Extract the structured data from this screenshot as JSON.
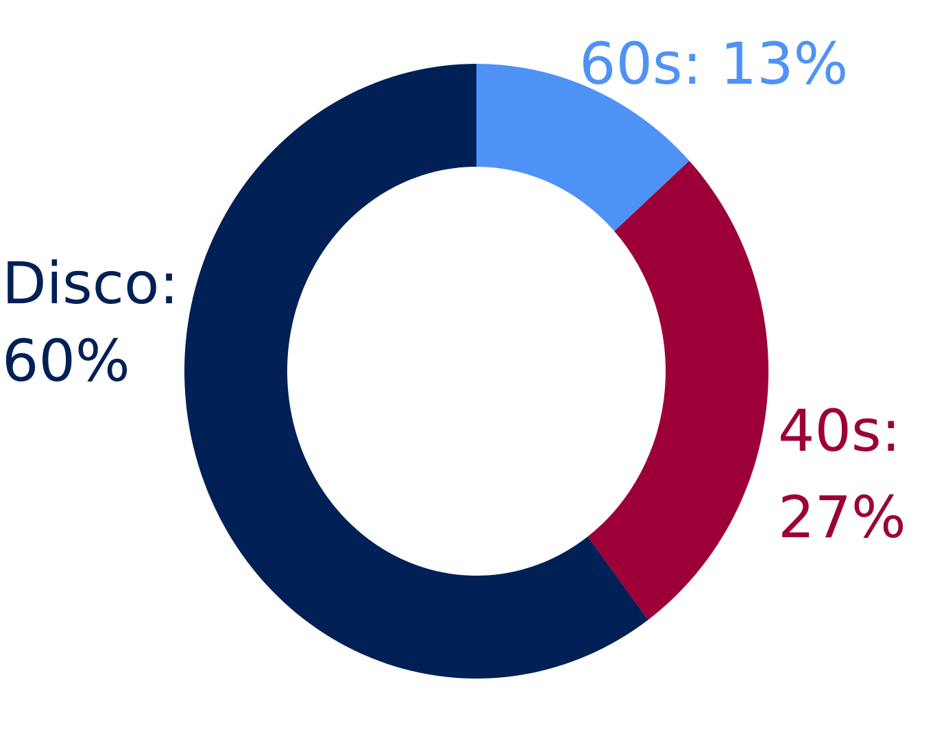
{
  "chart_data": {
    "type": "pie",
    "variant": "donut",
    "title": "",
    "legend": "none",
    "slices": [
      {
        "label": "60s",
        "value": 13,
        "display": "60s: 13%",
        "label_lines": [
          "60s: 13%"
        ],
        "color": "#4f92f6"
      },
      {
        "label": "40s",
        "value": 27,
        "display": "40s: 27%",
        "label_lines": [
          "40s:",
          "27%"
        ],
        "color": "#9d0038"
      },
      {
        "label": "Disco",
        "value": 60,
        "display": "Disco: 60%",
        "label_lines": [
          "Disco:",
          "60%"
        ],
        "color": "#002056"
      }
    ]
  }
}
